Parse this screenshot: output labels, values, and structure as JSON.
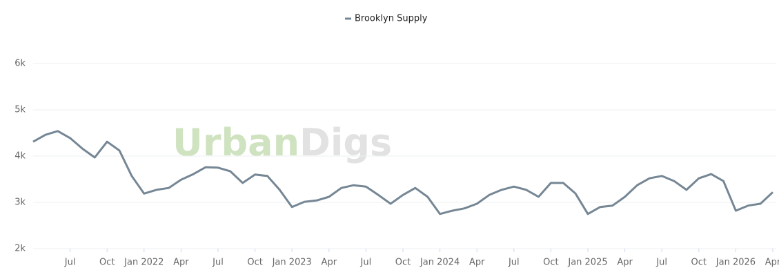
{
  "chart_data": {
    "type": "line",
    "watermark": [
      "Urban",
      "Digs"
    ],
    "x": [
      "2021-04",
      "2021-05",
      "2021-06",
      "2021-07",
      "2021-08",
      "2021-09",
      "2021-10",
      "2021-11",
      "2021-12",
      "2022-01",
      "2022-02",
      "2022-03",
      "2022-04",
      "2022-05",
      "2022-06",
      "2022-07",
      "2022-08",
      "2022-09",
      "2022-10",
      "2022-11",
      "2022-12",
      "2023-01",
      "2023-02",
      "2023-03",
      "2023-04",
      "2023-05",
      "2023-06",
      "2023-07",
      "2023-08",
      "2023-09",
      "2023-10",
      "2023-11",
      "2023-12",
      "2024-01",
      "2024-02",
      "2024-03",
      "2024-04",
      "2024-05",
      "2024-06",
      "2024-07",
      "2024-08",
      "2024-09",
      "2024-10",
      "2024-11",
      "2024-12",
      "2025-01",
      "2025-02",
      "2025-03",
      "2025-04",
      "2025-05",
      "2025-06",
      "2025-07",
      "2025-08",
      "2025-09",
      "2025-10",
      "2025-11",
      "2025-12",
      "2026-01",
      "2026-02",
      "2026-03",
      "2026-04"
    ],
    "series": [
      {
        "name": "Brooklyn Supply",
        "color": "#758694",
        "values": [
          4310,
          4460,
          4540,
          4390,
          4160,
          3970,
          4310,
          4120,
          3570,
          3190,
          3270,
          3310,
          3490,
          3610,
          3760,
          3750,
          3670,
          3420,
          3600,
          3570,
          3270,
          2900,
          3010,
          3040,
          3120,
          3310,
          3370,
          3340,
          3160,
          2970,
          3160,
          3310,
          3120,
          2750,
          2820,
          2870,
          2970,
          3160,
          3270,
          3340,
          3270,
          3120,
          3420,
          3420,
          3190,
          2750,
          2900,
          2930,
          3120,
          3370,
          3520,
          3570,
          3460,
          3270,
          3520,
          3610,
          3460,
          2820,
          2930,
          2970,
          3220
        ]
      }
    ],
    "xlim": [
      "2021-04",
      "2026-04"
    ],
    "xticks": [
      {
        "value": "2021-07",
        "label": "Jul"
      },
      {
        "value": "2021-10",
        "label": "Oct"
      },
      {
        "value": "2022-01",
        "label": "Jan 2022"
      },
      {
        "value": "2022-04",
        "label": "Apr"
      },
      {
        "value": "2022-07",
        "label": "Jul"
      },
      {
        "value": "2022-10",
        "label": "Oct"
      },
      {
        "value": "2023-01",
        "label": "Jan 2023"
      },
      {
        "value": "2023-04",
        "label": "Apr"
      },
      {
        "value": "2023-07",
        "label": "Jul"
      },
      {
        "value": "2023-10",
        "label": "Oct"
      },
      {
        "value": "2024-01",
        "label": "Jan 2024"
      },
      {
        "value": "2024-04",
        "label": "Apr"
      },
      {
        "value": "2024-07",
        "label": "Jul"
      },
      {
        "value": "2024-10",
        "label": "Oct"
      },
      {
        "value": "2025-01",
        "label": "Jan 2025"
      },
      {
        "value": "2025-04",
        "label": "Apr"
      },
      {
        "value": "2025-07",
        "label": "Jul"
      },
      {
        "value": "2025-10",
        "label": "Oct"
      },
      {
        "value": "2026-01",
        "label": "Jan 2026"
      },
      {
        "value": "2026-04",
        "label": "Apr"
      }
    ],
    "ylim": [
      2000,
      6000
    ],
    "yticks": [
      {
        "value": 2000,
        "label": "2k"
      },
      {
        "value": 3000,
        "label": "3k"
      },
      {
        "value": 4000,
        "label": "4k"
      },
      {
        "value": 5000,
        "label": "5k"
      },
      {
        "value": 6000,
        "label": "6k"
      }
    ],
    "grid": true
  }
}
